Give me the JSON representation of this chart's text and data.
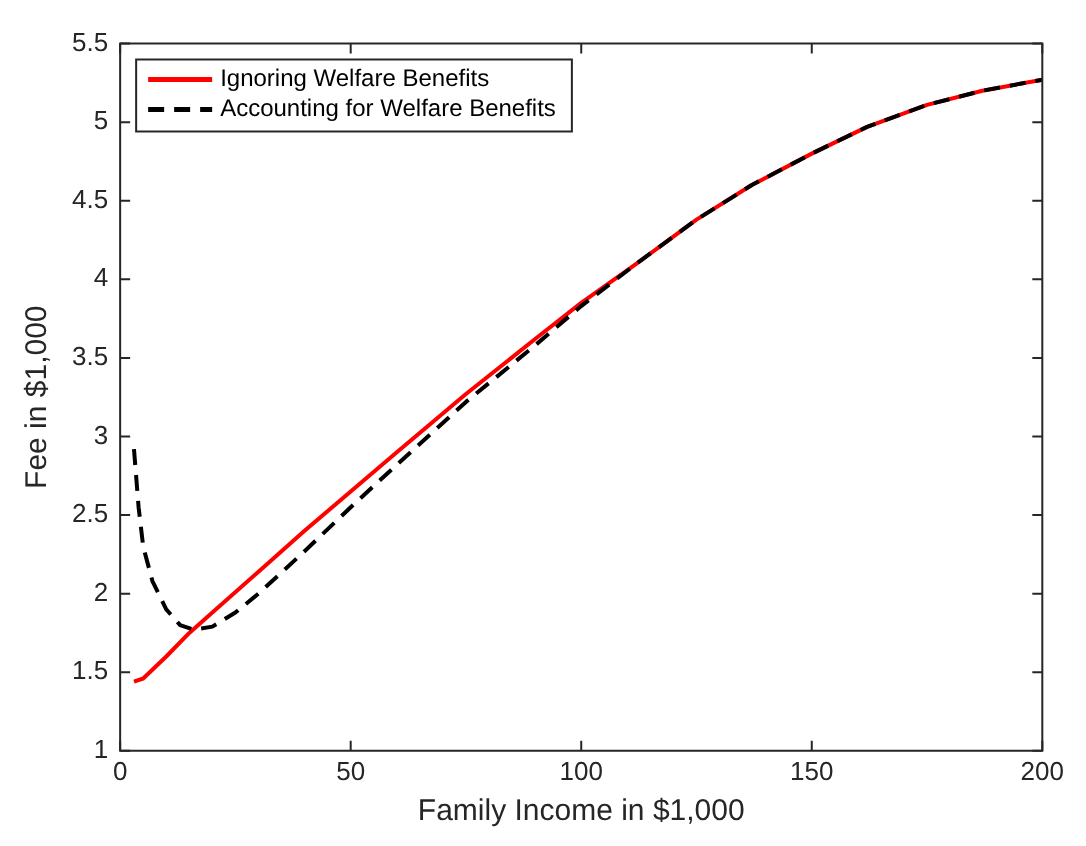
{
  "chart_data": {
    "type": "line",
    "xlabel": "Family Income in $1,000",
    "ylabel": "Fee in $1,000",
    "xlim": [
      0,
      200
    ],
    "xticks": [
      0,
      50,
      100,
      150,
      200
    ],
    "ylim": [
      1,
      5.5
    ],
    "yticks": [
      1,
      1.5,
      2,
      2.5,
      3,
      3.5,
      4,
      4.5,
      5,
      5.5
    ],
    "grid": false,
    "legend": "top left",
    "marker": "none",
    "series": [
      {
        "name": "Ignoring Welfare Benefits",
        "color": "#ff0000",
        "line_style": "solid",
        "x": [
          3,
          5,
          10,
          15,
          20,
          30,
          40,
          50,
          60,
          75,
          90,
          100,
          112,
          125,
          137,
          150,
          162,
          175,
          187,
          200
        ],
        "values": [
          1.44,
          1.46,
          1.6,
          1.75,
          1.88,
          2.14,
          2.4,
          2.65,
          2.9,
          3.27,
          3.62,
          3.85,
          4.1,
          4.38,
          4.6,
          4.8,
          4.97,
          5.11,
          5.2,
          5.27
        ]
      },
      {
        "name": "Accounting for Welfare Benefits",
        "color": "#000000",
        "line_style": "dashed",
        "x": [
          3,
          4,
          5,
          7,
          10,
          13,
          16,
          20,
          25,
          30,
          40,
          50,
          60,
          75,
          90,
          100,
          112,
          125,
          137,
          150,
          162,
          175,
          187,
          200
        ],
        "values": [
          2.92,
          2.55,
          2.3,
          2.08,
          1.9,
          1.8,
          1.77,
          1.79,
          1.88,
          2.0,
          2.27,
          2.55,
          2.82,
          3.22,
          3.58,
          3.83,
          4.1,
          4.38,
          4.6,
          4.8,
          4.97,
          5.11,
          5.2,
          5.27
        ]
      }
    ]
  }
}
